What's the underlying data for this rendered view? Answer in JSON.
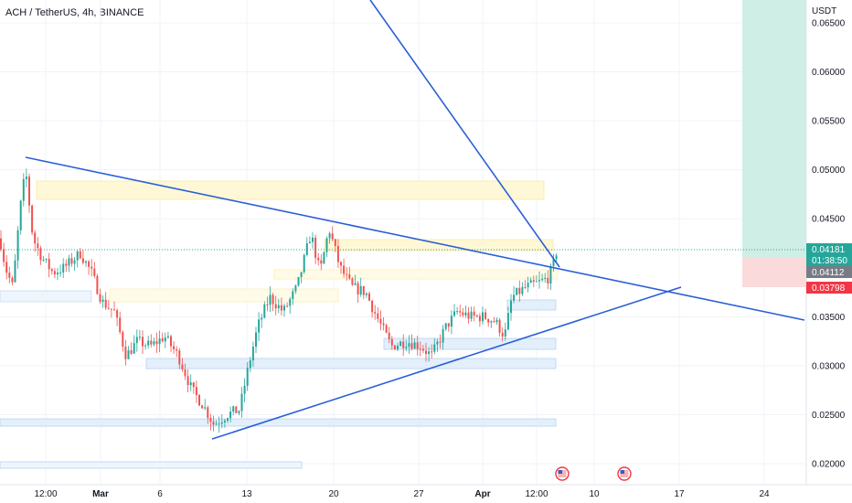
{
  "header": {
    "title": "ACH / TetherUS, 4h, BINANCE",
    "currency": "USDT"
  },
  "colors": {
    "up": "#26a69a",
    "down": "#ef5350",
    "trendline": "#2b5fd6",
    "zone_yellow": "#fff8d6",
    "zone_blue": "#e3effb",
    "target_zone": "#cfeee6",
    "stop_zone": "#fbdadb",
    "price_tag": "#26a69a",
    "countdown_tag": "#787b86",
    "stop_tag": "#f23645"
  },
  "chart_data": {
    "type": "candlestick",
    "x_axis_labels": [
      "12:00",
      "Mar",
      "6",
      "13",
      "20",
      "27",
      "Apr",
      "12:00",
      "10",
      "17",
      "24"
    ],
    "y_axis_labels": [
      "0.06500",
      "0.06000",
      "0.05500",
      "0.05000",
      "0.04500",
      "0.03500",
      "0.03000",
      "0.02500",
      "0.02000"
    ],
    "ylim": [
      0.0185,
      0.0665
    ],
    "price_tags": {
      "last_price": "0.04181",
      "countdown": "01:38:50",
      "entry": "0.04112",
      "stop": "0.03798"
    },
    "key_prices": {
      "high": 0.0512,
      "low": 0.0225,
      "mid_high": 0.0448,
      "recent_low": 0.0322
    },
    "event_icons": 2
  }
}
